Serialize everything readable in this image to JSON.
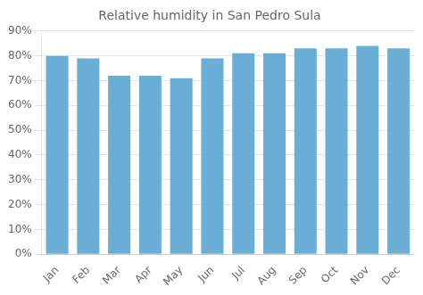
{
  "chart_data": {
    "type": "bar",
    "title": "Relative humidity in San Pedro Sula",
    "categories": [
      "Jan",
      "Feb",
      "Mar",
      "Apr",
      "May",
      "Jun",
      "Jul",
      "Aug",
      "Sep",
      "Oct",
      "Nov",
      "Dec"
    ],
    "values": [
      80,
      79,
      72,
      72,
      71,
      79,
      81,
      81,
      83,
      83,
      84,
      83
    ],
    "color": "#6aaed6",
    "ylim": [
      0,
      90
    ],
    "yticks": [
      {
        "value": 0,
        "label": "0%"
      },
      {
        "value": 10,
        "label": "10%"
      },
      {
        "value": 20,
        "label": "20%"
      },
      {
        "value": 30,
        "label": "30%"
      },
      {
        "value": 40,
        "label": "40%"
      },
      {
        "value": 50,
        "label": "50%"
      },
      {
        "value": 60,
        "label": "60%"
      },
      {
        "value": 70,
        "label": "70%"
      },
      {
        "value": 80,
        "label": "80%"
      },
      {
        "value": 90,
        "label": "90%"
      }
    ],
    "grid": true
  }
}
